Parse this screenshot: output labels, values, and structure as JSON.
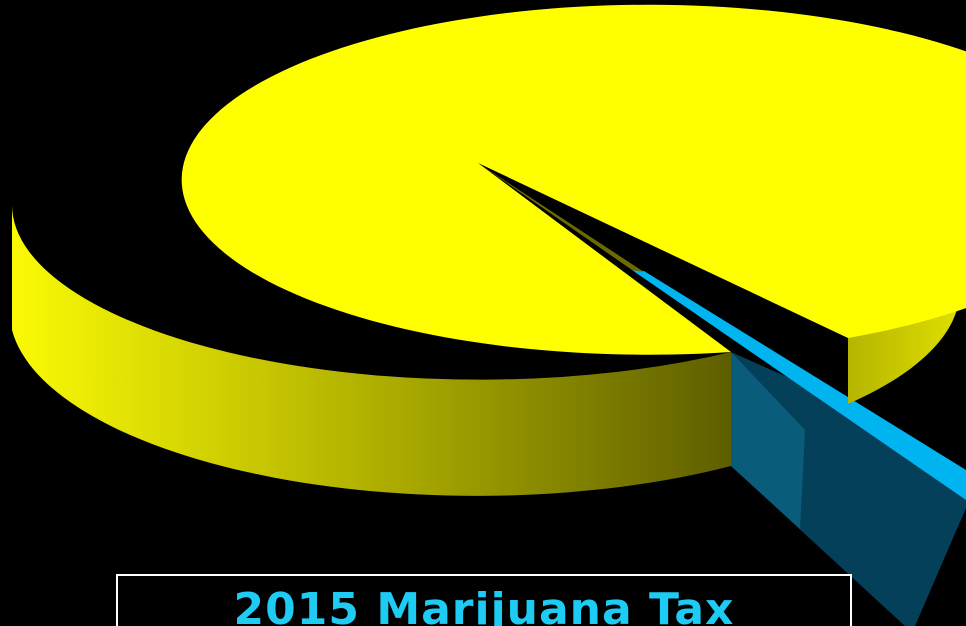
{
  "chart_data": {
    "type": "pie",
    "style": "3d-exploded",
    "title": "2015 Marijuana Tax",
    "slices": [
      {
        "value": 98,
        "color": "#ffff00",
        "side_color_light": "#f0ee10",
        "side_color_dark": "#5a5a00"
      },
      {
        "value": 2,
        "color": "#00b4f0",
        "side_color_light": "#0a5d7a",
        "side_color_dark": "#04405a"
      }
    ],
    "legend": "none",
    "data_labels": "none"
  },
  "colors": {
    "background": "#000000",
    "caption_text": "#1ecbf2",
    "caption_border": "#ffffff"
  }
}
